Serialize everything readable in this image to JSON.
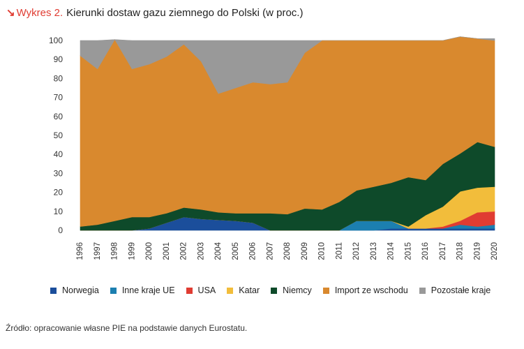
{
  "title": {
    "arrow": "↘",
    "prefix": "Wykres 2.",
    "text": "Kierunki dostaw gazu ziemnego do Polski (w proc.)"
  },
  "source": "Źródło: opracowanie własne PIE na podstawie danych Eurostatu.",
  "colors": {
    "accent": "#e03c32",
    "axis_text": "#333333",
    "grid": "#e6e6e6"
  },
  "chart_data": {
    "type": "area",
    "stacked": true,
    "title": "Kierunki dostaw gazu ziemnego do Polski (w proc.)",
    "xlabel": "",
    "ylabel": "",
    "ylim": [
      0,
      100
    ],
    "yticks": [
      0,
      10,
      20,
      30,
      40,
      50,
      60,
      70,
      80,
      90,
      100
    ],
    "grid": true,
    "legend_position": "bottom",
    "categories": [
      "1996",
      "1997",
      "1998",
      "1999",
      "2000",
      "2001",
      "2002",
      "2003",
      "2004",
      "2005",
      "2006",
      "2007",
      "2008",
      "2009",
      "2010",
      "2011",
      "2012",
      "2013",
      "2014",
      "2015",
      "2016",
      "2017",
      "2018",
      "2019",
      "2020"
    ],
    "series": [
      {
        "name": "Norwegia",
        "color": "#1b4e9b",
        "values": [
          0,
          0,
          0,
          0,
          1,
          4,
          7,
          6,
          5.5,
          5,
          4,
          0,
          0,
          0,
          0,
          0,
          0,
          0,
          1,
          1,
          1,
          1,
          1,
          1,
          1
        ]
      },
      {
        "name": "Inne kraje UE",
        "color": "#1c7fb0",
        "values": [
          0,
          0,
          0,
          0,
          0,
          0,
          0,
          0,
          0,
          0,
          0,
          0,
          0,
          0,
          0,
          0,
          5,
          5,
          4,
          0,
          0,
          0,
          2,
          1,
          2
        ]
      },
      {
        "name": "USA",
        "color": "#e03c32",
        "values": [
          0,
          0,
          0,
          0,
          0,
          0,
          0,
          0,
          0,
          0,
          0,
          0,
          0,
          0,
          0,
          0,
          0,
          0,
          0,
          0,
          0,
          1,
          2,
          7.5,
          7
        ]
      },
      {
        "name": "Katar",
        "color": "#f2bd3b",
        "values": [
          0,
          0,
          0,
          0,
          0,
          0,
          0,
          0,
          0,
          0,
          0,
          0,
          0,
          0,
          0,
          0,
          0,
          0,
          0,
          1,
          7,
          10.5,
          15.5,
          13,
          13
        ]
      },
      {
        "name": "Niemcy",
        "color": "#0e4a2a",
        "values": [
          2,
          3,
          5,
          7,
          6,
          5,
          5,
          5,
          4,
          4,
          5,
          9,
          8.5,
          11.5,
          11,
          15,
          16,
          18,
          20,
          26,
          18.5,
          22.5,
          20,
          24,
          21
        ]
      },
      {
        "name": "Import ze wschodu",
        "color": "#d9892e",
        "values": [
          90,
          82,
          95.5,
          78,
          80.5,
          82.5,
          86,
          78,
          62.5,
          66,
          69,
          68,
          69.5,
          82,
          89,
          85,
          79,
          77,
          75,
          72,
          73.5,
          65,
          61.5,
          54.5,
          56
        ]
      },
      {
        "name": "Pozostałe kraje",
        "color": "#999999",
        "values": [
          8,
          15,
          0,
          15,
          12.5,
          8.5,
          2,
          11,
          28,
          25,
          22,
          23,
          22,
          6.5,
          0,
          0,
          0,
          0,
          0,
          0,
          0,
          0,
          0,
          0,
          1
        ]
      }
    ]
  }
}
